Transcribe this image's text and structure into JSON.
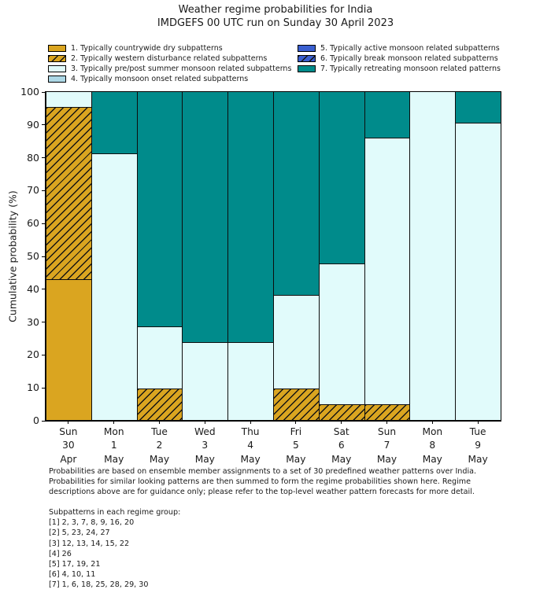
{
  "title": {
    "line1": "Weather regime probabilities for India",
    "line2": "IMDGEFS 00 UTC run on Sunday 30 April 2023"
  },
  "legend": {
    "items": [
      {
        "label": "1. Typically countrywide dry subpatterns",
        "color": "#daa520",
        "hatch": false
      },
      {
        "label": "2. Typically western disturbance related subpatterns",
        "color": "#daa520",
        "hatch": true
      },
      {
        "label": "3. Typically pre/post summer monsoon related subpatterns",
        "color": "#e1fbfb",
        "hatch": false
      },
      {
        "label": "4. Typically monsoon onset related subpatterns",
        "color": "#add8e6",
        "hatch": false
      },
      {
        "label": "5. Typically active monsoon related subpatterns",
        "color": "#3a5fd0",
        "hatch": false
      },
      {
        "label": "6. Typically break monsoon related subpatterns",
        "color": "#3a5fd0",
        "hatch": true
      },
      {
        "label": "7. Typically retreating monsoon related patterns",
        "color": "#008b8b",
        "hatch": false
      }
    ]
  },
  "chart_data": {
    "type": "bar",
    "stacked": true,
    "title": "Weather regime probabilities for India",
    "subtitle": "IMDGEFS 00 UTC run on Sunday 30 April 2023",
    "ylabel": "Cumulative probability (%)",
    "ylim": [
      0,
      100
    ],
    "yticks": [
      0,
      10,
      20,
      30,
      40,
      50,
      60,
      70,
      80,
      90,
      100
    ],
    "grid": false,
    "legend_position": "above-plot, two columns",
    "categories": [
      [
        "Sun",
        "30",
        "Apr"
      ],
      [
        "Mon",
        "1",
        "May"
      ],
      [
        "Tue",
        "2",
        "May"
      ],
      [
        "Wed",
        "3",
        "May"
      ],
      [
        "Thu",
        "4",
        "May"
      ],
      [
        "Fri",
        "5",
        "May"
      ],
      [
        "Sat",
        "6",
        "May"
      ],
      [
        "Sun",
        "7",
        "May"
      ],
      [
        "Mon",
        "8",
        "May"
      ],
      [
        "Tue",
        "9",
        "May"
      ]
    ],
    "series": [
      {
        "name": "1. Typically countrywide dry subpatterns",
        "values": [
          42.9,
          0,
          0,
          0,
          0,
          0,
          0,
          0,
          0,
          0
        ]
      },
      {
        "name": "2. Typically western disturbance related subpatterns",
        "values": [
          52.4,
          0,
          9.5,
          0,
          0,
          9.5,
          4.8,
          4.8,
          0,
          0
        ]
      },
      {
        "name": "3. Typically pre/post summer monsoon related subpatterns",
        "values": [
          4.8,
          81.0,
          19.0,
          23.8,
          23.8,
          28.6,
          42.9,
          81.0,
          100.0,
          90.5
        ]
      },
      {
        "name": "4. Typically monsoon onset related subpatterns",
        "values": [
          0,
          0,
          0,
          0,
          0,
          0,
          0,
          0,
          0,
          0
        ]
      },
      {
        "name": "5. Typically active monsoon related subpatterns",
        "values": [
          0,
          0,
          0,
          0,
          0,
          0,
          0,
          0,
          0,
          0
        ]
      },
      {
        "name": "6. Typically break monsoon related subpatterns",
        "values": [
          0,
          0,
          0,
          0,
          0,
          0,
          0,
          0,
          0,
          0
        ]
      },
      {
        "name": "7. Typically retreating monsoon related patterns",
        "values": [
          0,
          19.0,
          71.4,
          76.2,
          76.2,
          61.9,
          52.4,
          14.3,
          0,
          9.5
        ]
      }
    ]
  },
  "footnote": {
    "lines": [
      "Probabilities are based on ensemble member assignments to a set of 30 predefined weather patterns over India.",
      "Probabilities for similar looking patterns are then summed to form the regime probabilities shown here. Regime",
      "descriptions above are for guidance only; please refer to the top-level weather pattern forecasts for more detail."
    ]
  },
  "subpatterns": {
    "heading": "Subpatterns in each regime group:",
    "groups": [
      "[1] 2, 3, 7, 8, 9, 16, 20",
      "[2] 5, 23, 24, 27",
      "[3] 12, 13, 14, 15, 22",
      "[4] 26",
      "[5] 17, 19, 21",
      "[6] 4, 10, 11",
      "[7] 1, 6, 18, 25, 28, 29, 30"
    ]
  }
}
